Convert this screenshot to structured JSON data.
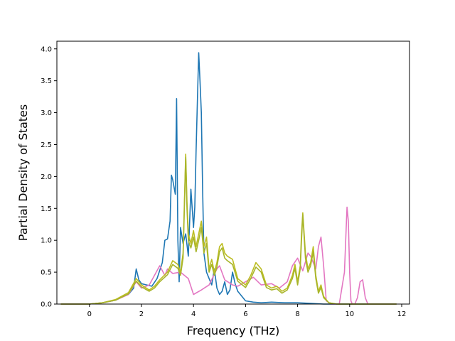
{
  "chart_data": {
    "type": "line",
    "title": "",
    "xlabel": "Frequency (THz)",
    "ylabel": "Partial Density of States",
    "xlim": [
      -1.25,
      12.3
    ],
    "ylim": [
      0,
      4.12
    ],
    "xticks": [
      0,
      2,
      4,
      6,
      8,
      10,
      12
    ],
    "yticks": [
      0.0,
      0.5,
      1.0,
      1.5,
      2.0,
      2.5,
      3.0,
      3.5,
      4.0
    ],
    "ytick_labels": [
      "0.0",
      "0.5",
      "1.0",
      "1.5",
      "2.0",
      "2.5",
      "3.0",
      "3.5",
      "4.0"
    ],
    "grid": false,
    "legend": "none",
    "series": [
      {
        "color": "#1f77b4",
        "x": [
          -1.1,
          0.0,
          0.5,
          1.0,
          1.3,
          1.5,
          1.7,
          1.8,
          1.9,
          2.0,
          2.2,
          2.4,
          2.6,
          2.8,
          2.9,
          3.0,
          3.1,
          3.15,
          3.2,
          3.3,
          3.35,
          3.4,
          3.45,
          3.5,
          3.6,
          3.7,
          3.8,
          3.9,
          4.0,
          4.05,
          4.1,
          4.15,
          4.2,
          4.25,
          4.3,
          4.35,
          4.4,
          4.5,
          4.6,
          4.7,
          4.8,
          4.9,
          5.0,
          5.1,
          5.2,
          5.3,
          5.4,
          5.5,
          5.6,
          5.7,
          5.8,
          6.0,
          6.3,
          6.6,
          7.0,
          7.5,
          8.0,
          8.5,
          9.0,
          10.0,
          11.8
        ],
        "y": [
          0.0,
          0.0,
          0.02,
          0.06,
          0.12,
          0.15,
          0.25,
          0.55,
          0.38,
          0.32,
          0.3,
          0.28,
          0.4,
          0.65,
          1.0,
          1.02,
          1.3,
          2.02,
          1.95,
          1.72,
          3.22,
          1.0,
          0.35,
          1.2,
          0.95,
          1.1,
          0.75,
          1.8,
          1.2,
          1.52,
          2.4,
          3.2,
          3.94,
          3.5,
          3.0,
          1.8,
          0.8,
          0.5,
          0.4,
          0.3,
          0.55,
          0.25,
          0.15,
          0.2,
          0.35,
          0.15,
          0.22,
          0.5,
          0.32,
          0.2,
          0.15,
          0.05,
          0.03,
          0.02,
          0.03,
          0.02,
          0.02,
          0.01,
          0.0,
          0.0,
          0.0
        ]
      },
      {
        "color": "#e377c2",
        "x": [
          -1.1,
          0.0,
          0.5,
          1.0,
          1.5,
          1.8,
          2.0,
          2.3,
          2.5,
          2.7,
          2.9,
          3.0,
          3.2,
          3.5,
          3.8,
          4.0,
          4.3,
          4.6,
          4.9,
          5.0,
          5.2,
          5.5,
          5.7,
          6.0,
          6.3,
          6.6,
          7.0,
          7.3,
          7.6,
          7.8,
          8.0,
          8.2,
          8.4,
          8.5,
          8.6,
          8.7,
          8.8,
          8.9,
          9.0,
          9.1,
          9.3,
          9.6,
          9.8,
          9.9,
          9.95,
          10.0,
          10.05,
          10.1,
          10.2,
          10.3,
          10.4,
          10.5,
          10.6,
          10.7,
          10.9,
          11.8
        ],
        "y": [
          0.0,
          0.0,
          0.02,
          0.06,
          0.15,
          0.35,
          0.25,
          0.3,
          0.45,
          0.6,
          0.45,
          0.55,
          0.48,
          0.5,
          0.4,
          0.15,
          0.22,
          0.3,
          0.55,
          0.6,
          0.38,
          0.3,
          0.28,
          0.35,
          0.42,
          0.3,
          0.32,
          0.25,
          0.35,
          0.6,
          0.72,
          0.52,
          0.8,
          0.75,
          0.65,
          0.55,
          0.9,
          1.05,
          0.6,
          0.05,
          0.0,
          0.0,
          0.5,
          1.52,
          1.3,
          0.5,
          0.05,
          0.0,
          0.0,
          0.1,
          0.35,
          0.38,
          0.1,
          0.0,
          0.0,
          0.0
        ]
      },
      {
        "color": "#bcbd22",
        "x": [
          -1.1,
          0.0,
          0.5,
          1.0,
          1.5,
          1.8,
          2.0,
          2.3,
          2.5,
          2.7,
          3.0,
          3.2,
          3.4,
          3.5,
          3.6,
          3.7,
          3.75,
          3.8,
          3.9,
          4.0,
          4.1,
          4.2,
          4.3,
          4.4,
          4.5,
          4.6,
          4.7,
          4.8,
          4.9,
          5.0,
          5.1,
          5.2,
          5.3,
          5.5,
          5.7,
          6.0,
          6.2,
          6.4,
          6.6,
          6.8,
          7.0,
          7.2,
          7.4,
          7.6,
          7.8,
          7.9,
          8.0,
          8.1,
          8.15,
          8.2,
          8.3,
          8.4,
          8.5,
          8.6,
          8.7,
          8.8,
          8.9,
          9.0,
          9.2,
          9.5,
          11.8
        ],
        "y": [
          0.0,
          0.0,
          0.02,
          0.07,
          0.18,
          0.4,
          0.3,
          0.22,
          0.28,
          0.38,
          0.5,
          0.68,
          0.62,
          0.5,
          0.8,
          2.35,
          1.6,
          1.1,
          0.95,
          1.15,
          0.9,
          1.1,
          1.3,
          0.9,
          1.05,
          0.55,
          0.7,
          0.5,
          0.65,
          0.9,
          0.95,
          0.8,
          0.75,
          0.7,
          0.4,
          0.3,
          0.45,
          0.65,
          0.55,
          0.3,
          0.25,
          0.28,
          0.2,
          0.25,
          0.45,
          0.62,
          0.35,
          0.6,
          1.1,
          1.43,
          0.8,
          0.55,
          0.65,
          0.9,
          0.45,
          0.2,
          0.3,
          0.12,
          0.02,
          0.0,
          0.0
        ]
      },
      {
        "color": "#a8b52a",
        "x": [
          -1.1,
          0.0,
          0.5,
          1.0,
          1.5,
          1.8,
          2.0,
          2.3,
          2.5,
          2.7,
          3.0,
          3.2,
          3.4,
          3.5,
          3.6,
          3.7,
          3.75,
          3.8,
          3.9,
          4.0,
          4.1,
          4.2,
          4.3,
          4.4,
          4.5,
          4.6,
          4.7,
          4.8,
          4.9,
          5.0,
          5.1,
          5.2,
          5.3,
          5.5,
          5.7,
          6.0,
          6.2,
          6.4,
          6.6,
          6.8,
          7.0,
          7.2,
          7.4,
          7.6,
          7.8,
          7.9,
          8.0,
          8.1,
          8.15,
          8.2,
          8.3,
          8.4,
          8.5,
          8.6,
          8.7,
          8.8,
          8.9,
          9.0,
          9.2,
          9.5,
          11.8
        ],
        "y": [
          0.0,
          0.0,
          0.02,
          0.06,
          0.16,
          0.36,
          0.27,
          0.2,
          0.25,
          0.35,
          0.46,
          0.62,
          0.56,
          0.45,
          0.72,
          2.3,
          1.5,
          1.0,
          0.88,
          1.05,
          0.82,
          1.0,
          1.2,
          0.8,
          0.95,
          0.5,
          0.62,
          0.45,
          0.58,
          0.82,
          0.88,
          0.72,
          0.68,
          0.62,
          0.36,
          0.26,
          0.4,
          0.58,
          0.5,
          0.26,
          0.22,
          0.24,
          0.17,
          0.22,
          0.4,
          0.56,
          0.3,
          0.55,
          1.0,
          1.4,
          0.72,
          0.5,
          0.6,
          0.82,
          0.4,
          0.17,
          0.26,
          0.1,
          0.02,
          0.0,
          0.0
        ]
      }
    ]
  }
}
